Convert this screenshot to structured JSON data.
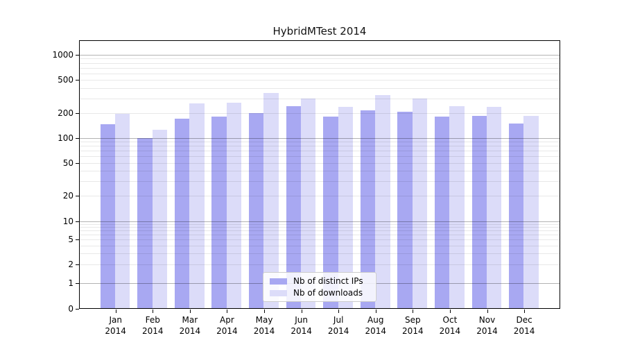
{
  "title": "HybridMTest 2014",
  "chart_data": {
    "type": "bar",
    "title": "HybridMTest 2014",
    "y_scale": "log (with 0 baseline)",
    "grid": true,
    "legend_position": "lower center inside plot",
    "categories": [
      "Jan",
      "Feb",
      "Mar",
      "Apr",
      "May",
      "Jun",
      "Jul",
      "Aug",
      "Sep",
      "Oct",
      "Nov",
      "Dec"
    ],
    "x_year": "2014",
    "y_ticks": [
      0,
      1,
      2,
      5,
      10,
      20,
      50,
      100,
      200,
      500,
      1000
    ],
    "ylim": [
      0,
      1500
    ],
    "series": [
      {
        "name": "Nb of distinct IPs",
        "color": "#a8a8f2",
        "values": [
          145,
          100,
          170,
          180,
          200,
          240,
          180,
          215,
          205,
          180,
          185,
          150
        ]
      },
      {
        "name": "Nb of downloads",
        "color": "#dcdcf9",
        "values": [
          195,
          125,
          260,
          265,
          350,
          295,
          235,
          325,
          300,
          240,
          235,
          185
        ]
      }
    ]
  }
}
